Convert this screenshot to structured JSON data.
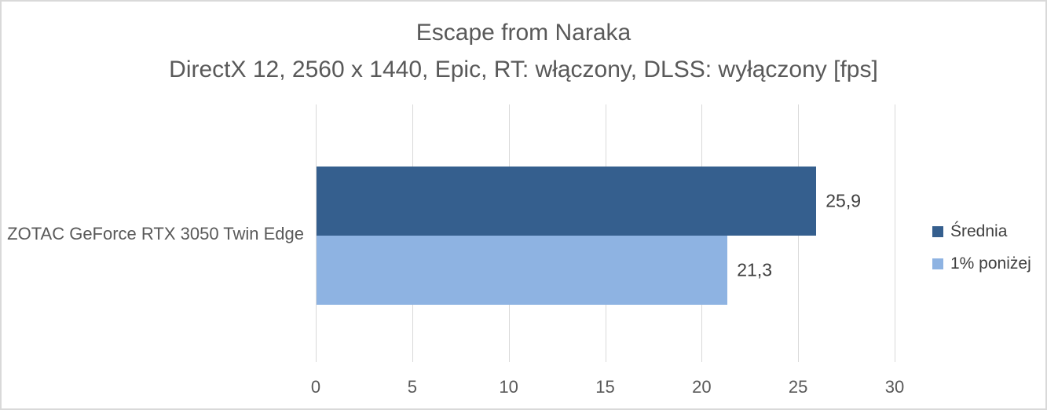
{
  "chart_data": {
    "type": "bar",
    "orientation": "horizontal",
    "title": "Escape from Naraka",
    "subtitle": "DirectX 12, 2560 x 1440, Epic, RT: włączony, DLSS: wyłączony [fps]",
    "categories": [
      "ZOTAC GeForce RTX 3050 Twin Edge"
    ],
    "series": [
      {
        "name": "Średnia",
        "values": [
          25.9
        ],
        "labels": [
          "25,9"
        ],
        "color": "#355F8E"
      },
      {
        "name": "1% poniżej",
        "values": [
          21.3
        ],
        "labels": [
          "21,3"
        ],
        "color": "#8EB3E2"
      }
    ],
    "x_axis": {
      "min": 0,
      "max": 30,
      "ticks": [
        "0",
        "5",
        "10",
        "15",
        "20",
        "25",
        "30"
      ]
    },
    "grid": true,
    "legend_position": "right"
  },
  "colors": {
    "gridline": "#D9D9D9",
    "frame_border": "#D9D9D9",
    "title_text": "#595959",
    "axis_text": "#595959",
    "value_label_text": "#404040"
  }
}
